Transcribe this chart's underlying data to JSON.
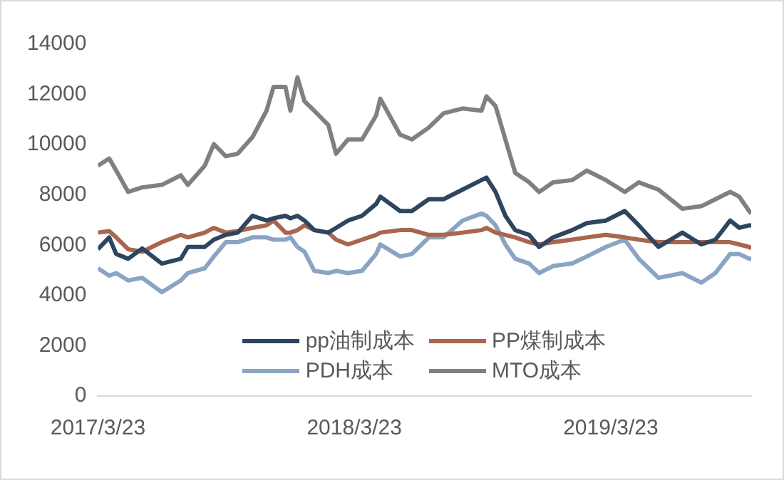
{
  "chart_data": {
    "type": "line",
    "x": [
      "2017-03-23",
      "2017-04-08",
      "2017-04-18",
      "2017-05-05",
      "2017-05-25",
      "2017-06-22",
      "2017-07-19",
      "2017-07-29",
      "2017-08-22",
      "2017-09-04",
      "2017-09-21",
      "2017-10-08",
      "2017-10-29",
      "2017-11-18",
      "2017-11-28",
      "2017-12-15",
      "2017-12-22",
      "2018-01-01",
      "2018-01-11",
      "2018-01-25",
      "2018-02-14",
      "2018-02-25",
      "2018-03-14",
      "2018-04-03",
      "2018-04-23",
      "2018-04-29",
      "2018-05-27",
      "2018-06-13",
      "2018-07-07",
      "2018-07-28",
      "2018-08-24",
      "2018-09-20",
      "2018-09-27",
      "2018-10-10",
      "2018-10-24",
      "2018-11-07",
      "2018-11-27",
      "2018-12-11",
      "2018-12-31",
      "2019-01-27",
      "2019-02-17",
      "2019-03-16",
      "2019-04-12",
      "2019-05-02",
      "2019-05-30",
      "2019-07-03",
      "2019-07-30",
      "2019-08-19",
      "2019-09-09",
      "2019-09-22",
      "2019-10-06",
      "2019-10-09"
    ],
    "series": [
      {
        "name": "pp油制成本",
        "color": "#2f455f",
        "values": [
          5840,
          6310,
          5650,
          5460,
          5870,
          5270,
          5460,
          5930,
          5930,
          6220,
          6410,
          6500,
          7170,
          6980,
          7070,
          7170,
          7070,
          7170,
          6980,
          6600,
          6500,
          6690,
          6980,
          7170,
          7640,
          7930,
          7360,
          7360,
          7830,
          7830,
          8210,
          8590,
          8690,
          8120,
          7170,
          6600,
          6410,
          5930,
          6310,
          6600,
          6880,
          6980,
          7360,
          6790,
          5930,
          6500,
          6030,
          6220,
          6980,
          6690,
          6790,
          6790
        ]
      },
      {
        "name": "PP煤制成本",
        "color": "#a9664f",
        "values": [
          6500,
          6560,
          6310,
          5840,
          5740,
          6120,
          6410,
          6310,
          6500,
          6690,
          6500,
          6560,
          6690,
          6790,
          6980,
          6500,
          6500,
          6600,
          6790,
          6600,
          6500,
          6220,
          6030,
          6220,
          6410,
          6500,
          6600,
          6600,
          6410,
          6410,
          6500,
          6600,
          6690,
          6500,
          6410,
          6310,
          6120,
          6030,
          6120,
          6220,
          6310,
          6410,
          6310,
          6220,
          6120,
          6120,
          6120,
          6120,
          6120,
          6030,
          5930,
          5870
        ]
      },
      {
        "name": "PDH成本",
        "color": "#8aa4c4",
        "values": [
          5080,
          4790,
          4890,
          4600,
          4700,
          4130,
          4600,
          4890,
          5080,
          5550,
          6120,
          6120,
          6310,
          6310,
          6220,
          6220,
          6310,
          5930,
          5740,
          4980,
          4890,
          4980,
          4890,
          4980,
          5650,
          6030,
          5550,
          5650,
          6310,
          6310,
          6980,
          7260,
          7170,
          6790,
          6030,
          5460,
          5270,
          4890,
          5170,
          5270,
          5550,
          5930,
          6220,
          5460,
          4700,
          4890,
          4510,
          4890,
          5650,
          5650,
          5460,
          5460
        ]
      },
      {
        "name": "MTO成本",
        "color": "#808080",
        "values": [
          9160,
          9450,
          8970,
          8120,
          8300,
          8400,
          8780,
          8400,
          9160,
          10020,
          9540,
          9640,
          10300,
          11350,
          12300,
          12300,
          11350,
          12680,
          11730,
          11350,
          10780,
          9640,
          10210,
          10210,
          11160,
          11830,
          10400,
          10210,
          10680,
          11250,
          11440,
          11350,
          11920,
          11540,
          10210,
          8880,
          8500,
          8120,
          8500,
          8590,
          8970,
          8590,
          8120,
          8500,
          8210,
          7450,
          7550,
          7830,
          8120,
          7930,
          7360,
          7260
        ]
      }
    ],
    "xlim": [
      "2017-03-23",
      "2019-10-09"
    ],
    "xticks": [
      {
        "value": "2017-03-23",
        "label": "2017/3/23"
      },
      {
        "value": "2018-03-23",
        "label": "2018/3/23"
      },
      {
        "value": "2019-03-23",
        "label": "2019/3/23"
      }
    ],
    "ylim": [
      0,
      14000
    ],
    "yticks": [
      0,
      2000,
      4000,
      6000,
      8000,
      10000,
      12000,
      14000
    ],
    "legend": "bottom"
  }
}
